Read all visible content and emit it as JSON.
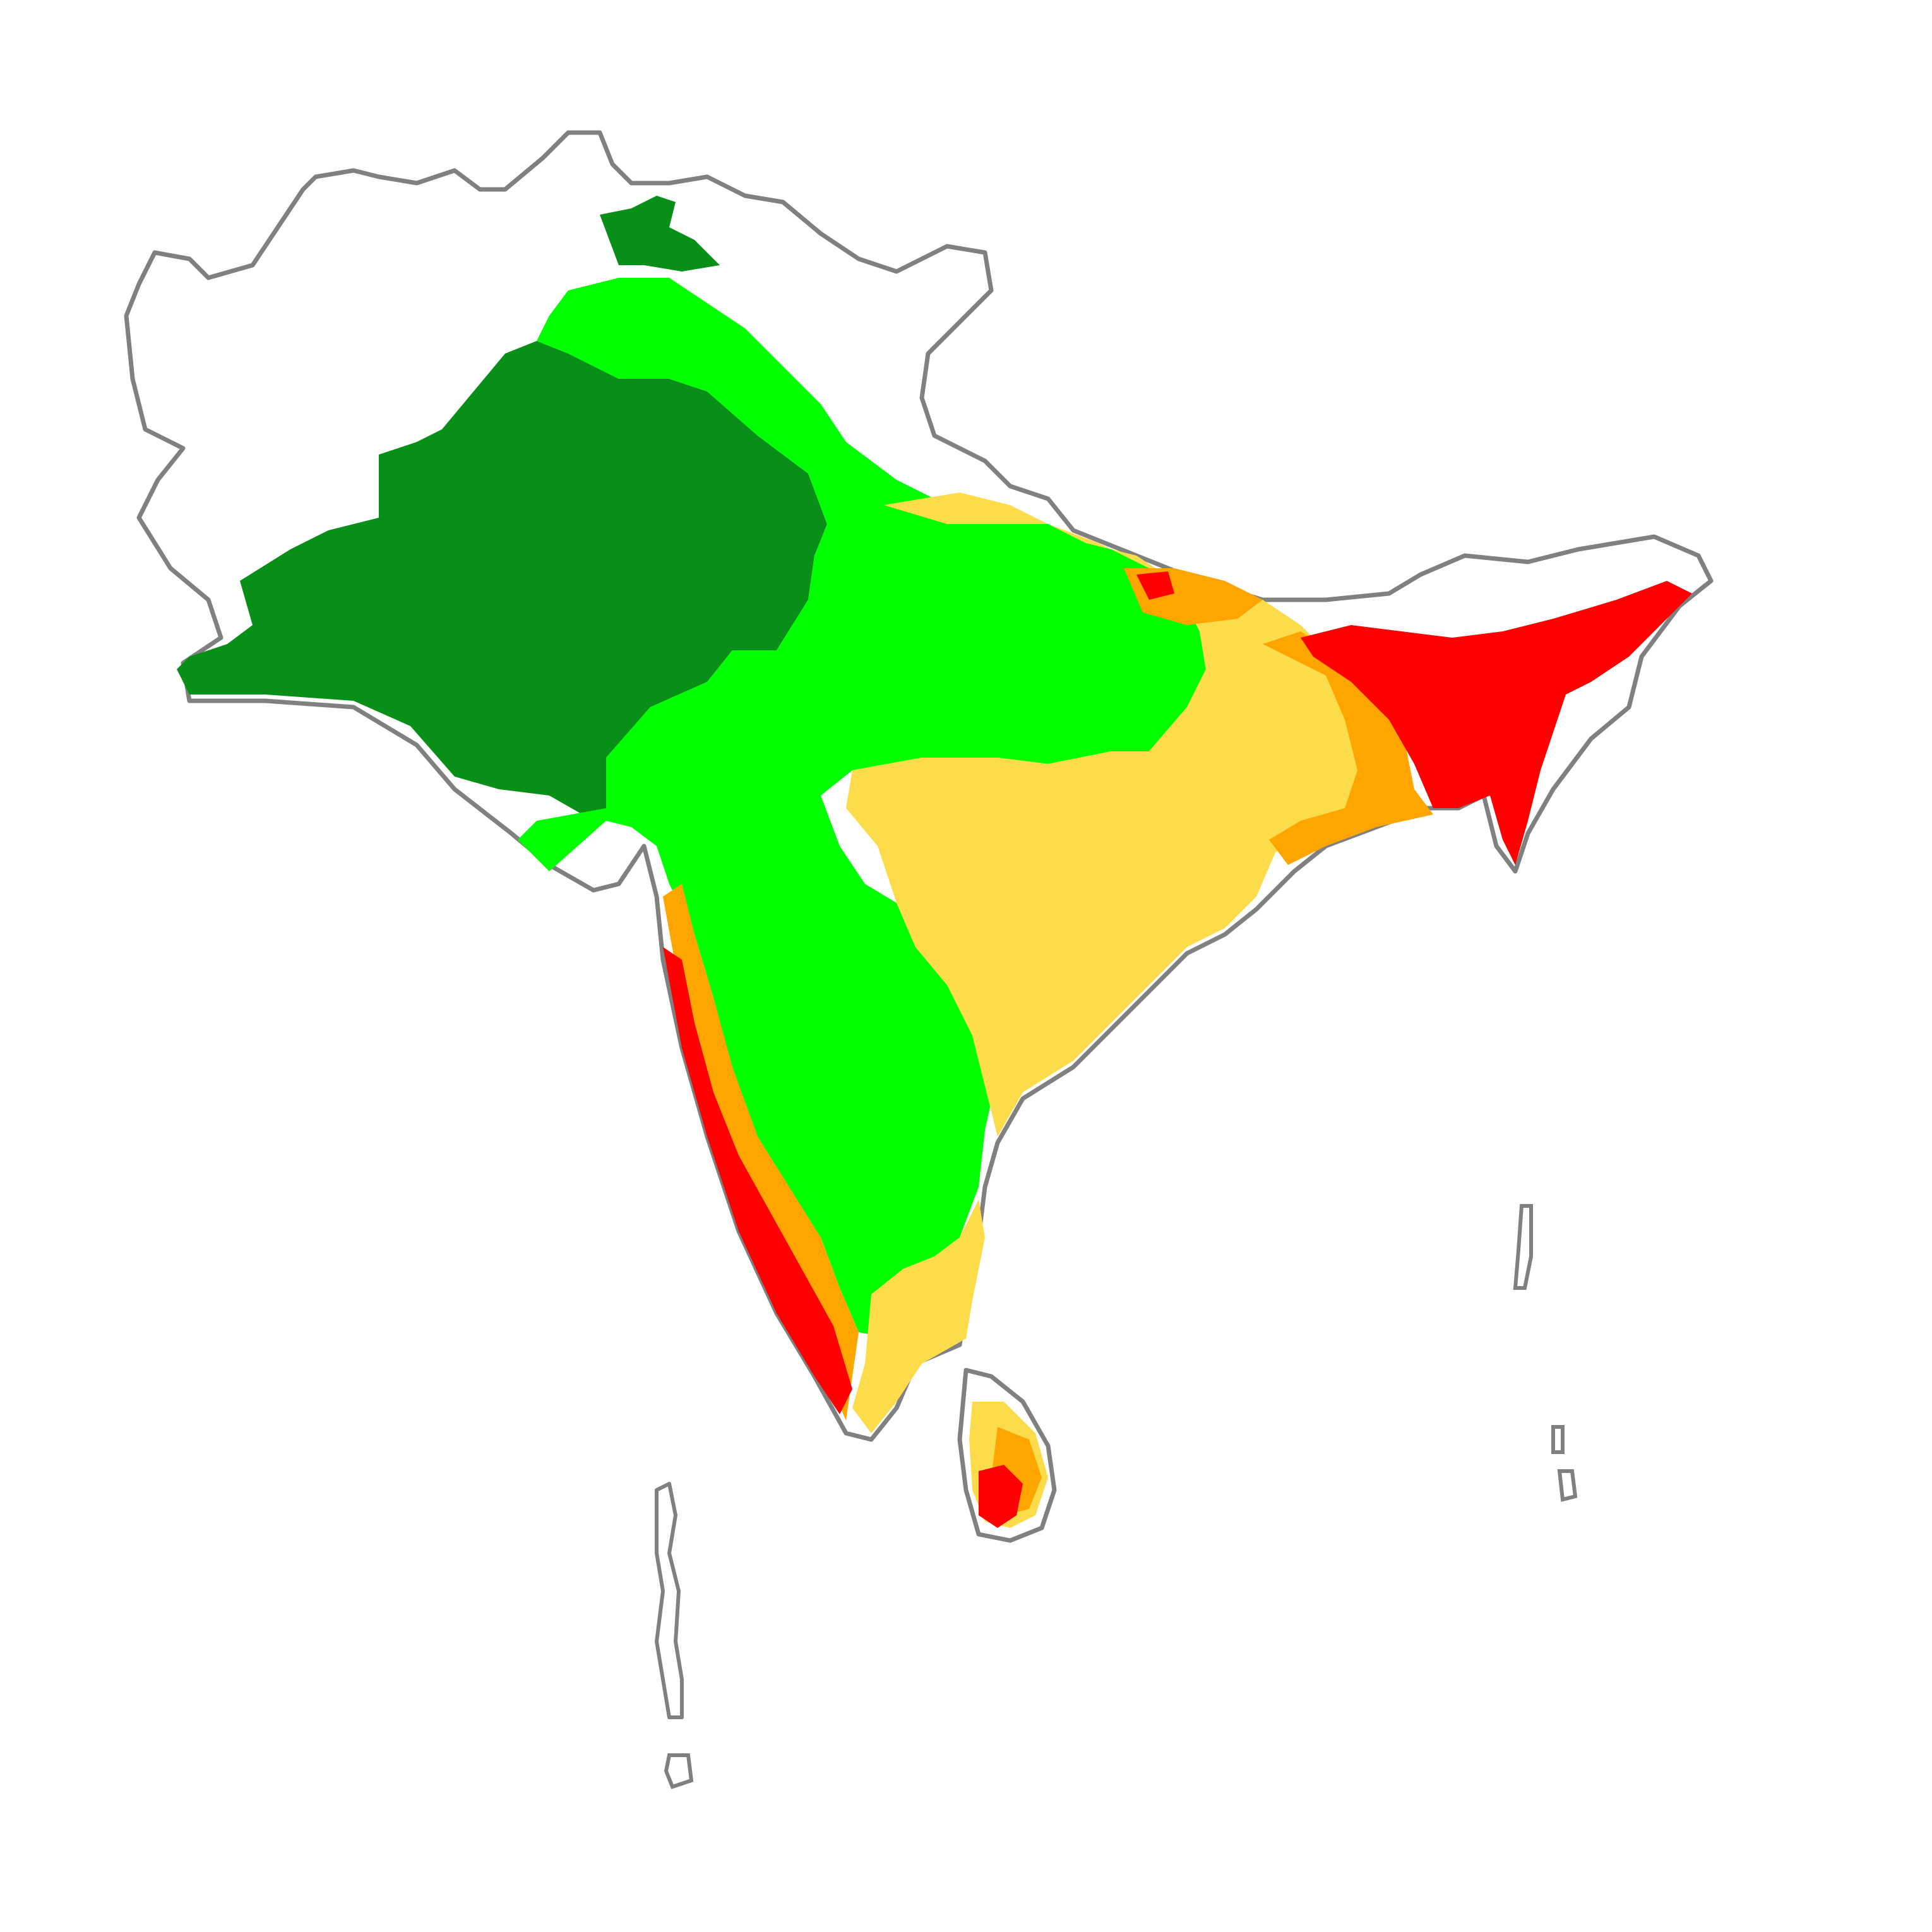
{
  "map": {
    "type": "choropleth-raster",
    "region_outline_color": "#808080",
    "background_color": "#ffffff",
    "classes": [
      {
        "key": "class-1",
        "color": "#078f17"
      },
      {
        "key": "class-2",
        "color": "#00ff00"
      },
      {
        "key": "class-3",
        "color": "#fddc4c"
      },
      {
        "key": "class-4",
        "color": "#ffa500"
      },
      {
        "key": "class-5",
        "color": "#ff0000"
      }
    ]
  }
}
